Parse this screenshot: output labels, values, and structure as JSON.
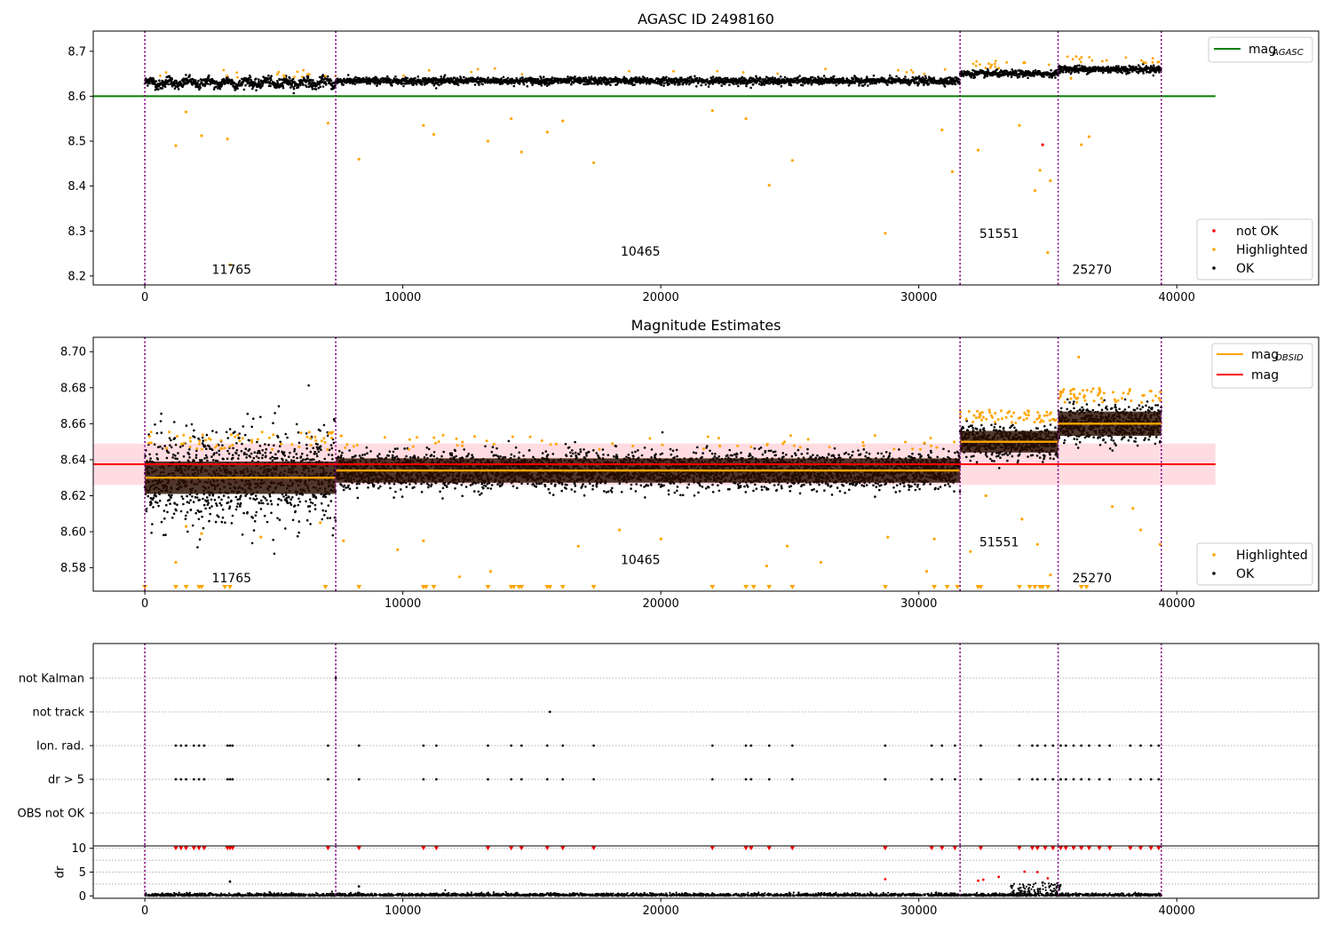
{
  "chart_data": [
    {
      "type": "scatter",
      "title": "AGASC ID 2498160",
      "xlim": [
        -2000,
        45500
      ],
      "ylim": [
        8.18,
        8.745
      ],
      "xticks": [
        0,
        10000,
        20000,
        30000,
        40000
      ],
      "yticks": [
        8.2,
        8.3,
        8.4,
        8.5,
        8.6,
        8.7
      ],
      "ytick_labels": [
        "8.2",
        "8.3",
        "8.4",
        "8.5",
        "8.6",
        "8.7"
      ],
      "segment_boundaries": [
        0,
        7400,
        31600,
        35400,
        39400
      ],
      "segments": [
        {
          "x_start": 0,
          "x_end": 7400,
          "mean": 8.63,
          "spread": 0.012,
          "label": "11765",
          "label_x": 2950,
          "label_y": 8.205
        },
        {
          "x_start": 7400,
          "x_end": 31600,
          "mean": 8.634,
          "spread": 0.009,
          "label": "10465",
          "label_x": 18800,
          "label_y": 8.245
        },
        {
          "x_start": 31600,
          "x_end": 35400,
          "mean": 8.65,
          "spread": 0.008,
          "label": "51551",
          "label_x": 32700,
          "label_y": 8.285
        },
        {
          "x_start": 35400,
          "x_end": 39400,
          "mean": 8.66,
          "spread": 0.009,
          "label": "25270",
          "label_x": 36300,
          "label_y": 8.205
        }
      ],
      "reference_line": {
        "name": "mag$_{AGASC}$",
        "y": 8.6,
        "x_range": [
          -2000,
          41500
        ],
        "color": "#008000"
      },
      "outliers": [
        {
          "x": 1200,
          "y": 8.49,
          "color": "orange"
        },
        {
          "x": 1600,
          "y": 8.565,
          "color": "orange"
        },
        {
          "x": 2200,
          "y": 8.512,
          "color": "orange"
        },
        {
          "x": 3200,
          "y": 8.505,
          "color": "orange"
        },
        {
          "x": 3300,
          "y": 8.225,
          "color": "orange"
        },
        {
          "x": 7100,
          "y": 8.54,
          "color": "orange"
        },
        {
          "x": 8300,
          "y": 8.46,
          "color": "orange"
        },
        {
          "x": 10800,
          "y": 8.535,
          "color": "orange"
        },
        {
          "x": 11200,
          "y": 8.515,
          "color": "orange"
        },
        {
          "x": 13300,
          "y": 8.5,
          "color": "orange"
        },
        {
          "x": 14200,
          "y": 8.55,
          "color": "orange"
        },
        {
          "x": 14600,
          "y": 8.476,
          "color": "orange"
        },
        {
          "x": 15600,
          "y": 8.52,
          "color": "orange"
        },
        {
          "x": 16200,
          "y": 8.545,
          "color": "orange"
        },
        {
          "x": 17400,
          "y": 8.452,
          "color": "orange"
        },
        {
          "x": 22000,
          "y": 8.568,
          "color": "orange"
        },
        {
          "x": 23300,
          "y": 8.55,
          "color": "orange"
        },
        {
          "x": 24200,
          "y": 8.402,
          "color": "orange"
        },
        {
          "x": 25100,
          "y": 8.457,
          "color": "orange"
        },
        {
          "x": 28700,
          "y": 8.295,
          "color": "orange"
        },
        {
          "x": 30900,
          "y": 8.525,
          "color": "orange"
        },
        {
          "x": 31300,
          "y": 8.432,
          "color": "orange"
        },
        {
          "x": 32300,
          "y": 8.48,
          "color": "orange"
        },
        {
          "x": 33900,
          "y": 8.535,
          "color": "orange"
        },
        {
          "x": 34500,
          "y": 8.39,
          "color": "orange"
        },
        {
          "x": 34700,
          "y": 8.435,
          "color": "orange"
        },
        {
          "x": 34800,
          "y": 8.492,
          "color": "red"
        },
        {
          "x": 35000,
          "y": 8.252,
          "color": "orange"
        },
        {
          "x": 35100,
          "y": 8.412,
          "color": "orange"
        },
        {
          "x": 36300,
          "y": 8.492,
          "color": "orange"
        },
        {
          "x": 36600,
          "y": 8.51,
          "color": "orange"
        },
        {
          "x": 35900,
          "y": 8.64,
          "color": "orange"
        }
      ],
      "legends": [
        {
          "position": "top-right",
          "entries": [
            {
              "label": "mag",
              "sub": "AGASC",
              "marker": "line",
              "color": "#008000"
            }
          ]
        },
        {
          "position": "bottom-right",
          "entries": [
            {
              "label": "not OK",
              "marker": "dot",
              "color": "#ff0000"
            },
            {
              "label": "Highlighted",
              "marker": "dot",
              "color": "#ffa500"
            },
            {
              "label": "OK",
              "marker": "dot",
              "color": "#000000"
            }
          ]
        }
      ]
    },
    {
      "type": "scatter",
      "title": "Magnitude Estimates",
      "xlim": [
        -2000,
        45500
      ],
      "ylim": [
        8.567,
        8.708
      ],
      "xticks": [
        0,
        10000,
        20000,
        30000,
        40000
      ],
      "yticks": [
        8.58,
        8.6,
        8.62,
        8.64,
        8.66,
        8.68,
        8.7
      ],
      "ytick_labels": [
        "8.58",
        "8.60",
        "8.62",
        "8.64",
        "8.66",
        "8.68",
        "8.70"
      ],
      "segment_boundaries": [
        0,
        7400,
        31600,
        35400,
        39400
      ],
      "segments": [
        {
          "x_start": 0,
          "x_end": 7400,
          "mean": 8.63,
          "spread": 0.012,
          "label": "11765",
          "label_x": 2950,
          "label_y": 8.572
        },
        {
          "x_start": 7400,
          "x_end": 31600,
          "mean": 8.634,
          "spread": 0.009,
          "label": "10465",
          "label_x": 18800,
          "label_y": 8.582
        },
        {
          "x_start": 31600,
          "x_end": 35400,
          "mean": 8.65,
          "spread": 0.008,
          "label": "51551",
          "label_x": 32700,
          "label_y": 8.592
        },
        {
          "x_start": 35400,
          "x_end": 39400,
          "mean": 8.66,
          "spread": 0.009,
          "label": "25270",
          "label_x": 36300,
          "label_y": 8.572
        }
      ],
      "mag_line": {
        "name": "mag",
        "y": 8.6375,
        "band": [
          8.626,
          8.649
        ],
        "x_range": [
          -2000,
          41500
        ],
        "color": "#ff0000"
      },
      "outliers": [
        {
          "x": 1200,
          "y": 8.583,
          "color": "orange"
        },
        {
          "x": 1600,
          "y": 8.603,
          "color": "orange"
        },
        {
          "x": 2200,
          "y": 8.599,
          "color": "orange"
        },
        {
          "x": 4500,
          "y": 8.597,
          "color": "orange"
        },
        {
          "x": 6800,
          "y": 8.605,
          "color": "orange"
        },
        {
          "x": 7700,
          "y": 8.595,
          "color": "orange"
        },
        {
          "x": 9800,
          "y": 8.59,
          "color": "orange"
        },
        {
          "x": 10800,
          "y": 8.595,
          "color": "orange"
        },
        {
          "x": 12200,
          "y": 8.575,
          "color": "orange"
        },
        {
          "x": 13400,
          "y": 8.578,
          "color": "orange"
        },
        {
          "x": 16800,
          "y": 8.592,
          "color": "orange"
        },
        {
          "x": 18400,
          "y": 8.601,
          "color": "orange"
        },
        {
          "x": 20000,
          "y": 8.596,
          "color": "orange"
        },
        {
          "x": 24100,
          "y": 8.581,
          "color": "orange"
        },
        {
          "x": 24900,
          "y": 8.592,
          "color": "orange"
        },
        {
          "x": 26200,
          "y": 8.583,
          "color": "orange"
        },
        {
          "x": 28800,
          "y": 8.597,
          "color": "orange"
        },
        {
          "x": 30300,
          "y": 8.578,
          "color": "orange"
        },
        {
          "x": 30600,
          "y": 8.596,
          "color": "orange"
        },
        {
          "x": 32000,
          "y": 8.589,
          "color": "orange"
        },
        {
          "x": 32600,
          "y": 8.62,
          "color": "orange"
        },
        {
          "x": 34000,
          "y": 8.607,
          "color": "orange"
        },
        {
          "x": 34600,
          "y": 8.593,
          "color": "orange"
        },
        {
          "x": 35100,
          "y": 8.576,
          "color": "orange"
        },
        {
          "x": 36200,
          "y": 8.697,
          "color": "orange"
        },
        {
          "x": 37500,
          "y": 8.614,
          "color": "orange"
        },
        {
          "x": 38300,
          "y": 8.613,
          "color": "orange"
        },
        {
          "x": 38600,
          "y": 8.601,
          "color": "orange"
        },
        {
          "x": 39350,
          "y": 8.593,
          "color": "orange"
        }
      ],
      "clipped_markers_x": [
        0,
        1200,
        1600,
        2100,
        2200,
        3100,
        3300,
        7000,
        8300,
        10800,
        10900,
        11200,
        13300,
        14200,
        14300,
        14500,
        14600,
        15600,
        15700,
        16200,
        17400,
        22000,
        23300,
        23600,
        24200,
        25100,
        28700,
        30600,
        31100,
        31500,
        32300,
        32400,
        33900,
        34300,
        34500,
        34700,
        34800,
        35000,
        36300,
        36500
      ],
      "legends": [
        {
          "position": "top-right",
          "entries": [
            {
              "label": "mag",
              "sub": "OBSID",
              "marker": "line",
              "color": "#ffa500"
            },
            {
              "label": "mag",
              "marker": "line",
              "color": "#ff0000"
            }
          ]
        },
        {
          "position": "bottom-right",
          "entries": [
            {
              "label": "Highlighted",
              "marker": "dot",
              "color": "#ffa500"
            },
            {
              "label": "OK",
              "marker": "dot",
              "color": "#000000"
            }
          ]
        }
      ]
    },
    {
      "type": "scatter",
      "title": "",
      "xlim": [
        -2000,
        45500
      ],
      "categories": [
        "not Kalman",
        "not track",
        "Ion. rad.",
        "dr > 5",
        "OBS not OK"
      ],
      "segment_boundaries": [
        0,
        7400,
        31600,
        35400,
        39400
      ],
      "flag_events": {
        "not Kalman": [
          7400
        ],
        "not track": [
          15700
        ],
        "Ion. rad.": [
          1200,
          1400,
          1600,
          1900,
          2100,
          2300,
          3200,
          3300,
          3400,
          7100,
          8300,
          10800,
          11300,
          13300,
          14200,
          14600,
          15600,
          16200,
          17400,
          22000,
          23300,
          23500,
          24200,
          25100,
          28700,
          30500,
          30900,
          31400,
          32400,
          33900,
          34400,
          34600,
          34900,
          35200,
          35500,
          35700,
          36000,
          36300,
          36600,
          37000,
          37400,
          38200,
          38600,
          39000,
          39300
        ],
        "dr > 5": [
          1200,
          1400,
          1600,
          1900,
          2100,
          2300,
          3200,
          3300,
          3400,
          7100,
          8300,
          10800,
          11300,
          13300,
          14200,
          14600,
          15600,
          16200,
          17400,
          22000,
          23300,
          23500,
          24200,
          25100,
          28700,
          30500,
          30900,
          31400,
          32400,
          33900,
          34400,
          34600,
          34900,
          35200,
          35500,
          35700,
          36000,
          36300,
          36600,
          37000,
          37400,
          38200,
          38600,
          39000,
          39300
        ],
        "OBS not OK": []
      }
    },
    {
      "type": "scatter",
      "title": "",
      "xlim": [
        -2000,
        45500
      ],
      "ylim": [
        -0.5,
        10.5
      ],
      "xticks": [
        0,
        10000,
        20000,
        30000,
        40000
      ],
      "yticks": [
        0,
        5,
        10
      ],
      "ylabel": "dr",
      "segment_boundaries": [
        0,
        7400,
        31600,
        35400,
        39400
      ],
      "baseline_points": {
        "y_range": [
          0,
          0.6
        ],
        "x_range": [
          0,
          39400
        ]
      },
      "spikes": [
        {
          "x": 3300,
          "y": 3.0,
          "color": "black"
        },
        {
          "x": 8300,
          "y": 2.0,
          "color": "black"
        },
        {
          "x": 28700,
          "y": 3.5,
          "color": "red"
        },
        {
          "x": 32300,
          "y": 3.2,
          "color": "red"
        },
        {
          "x": 32500,
          "y": 3.4,
          "color": "red"
        },
        {
          "x": 33100,
          "y": 4.0,
          "color": "red"
        },
        {
          "x": 34100,
          "y": 5.1,
          "color": "red"
        },
        {
          "x": 34600,
          "y": 5.0,
          "color": "red"
        },
        {
          "x": 35000,
          "y": 3.7,
          "color": "red"
        },
        {
          "x": 34800,
          "y": 2.8,
          "color": "black"
        }
      ],
      "clipped_markers_x": [
        1200,
        1400,
        1600,
        1900,
        2100,
        2300,
        3200,
        3300,
        3400,
        7100,
        8300,
        10800,
        11300,
        13300,
        14200,
        14600,
        15600,
        16200,
        17400,
        22000,
        23300,
        23500,
        24200,
        25100,
        28700,
        30500,
        30900,
        31400,
        32400,
        33900,
        34400,
        34600,
        34900,
        35200,
        35500,
        35700,
        36000,
        36300,
        36600,
        37000,
        37400,
        38200,
        38600,
        39000,
        39300
      ]
    }
  ]
}
